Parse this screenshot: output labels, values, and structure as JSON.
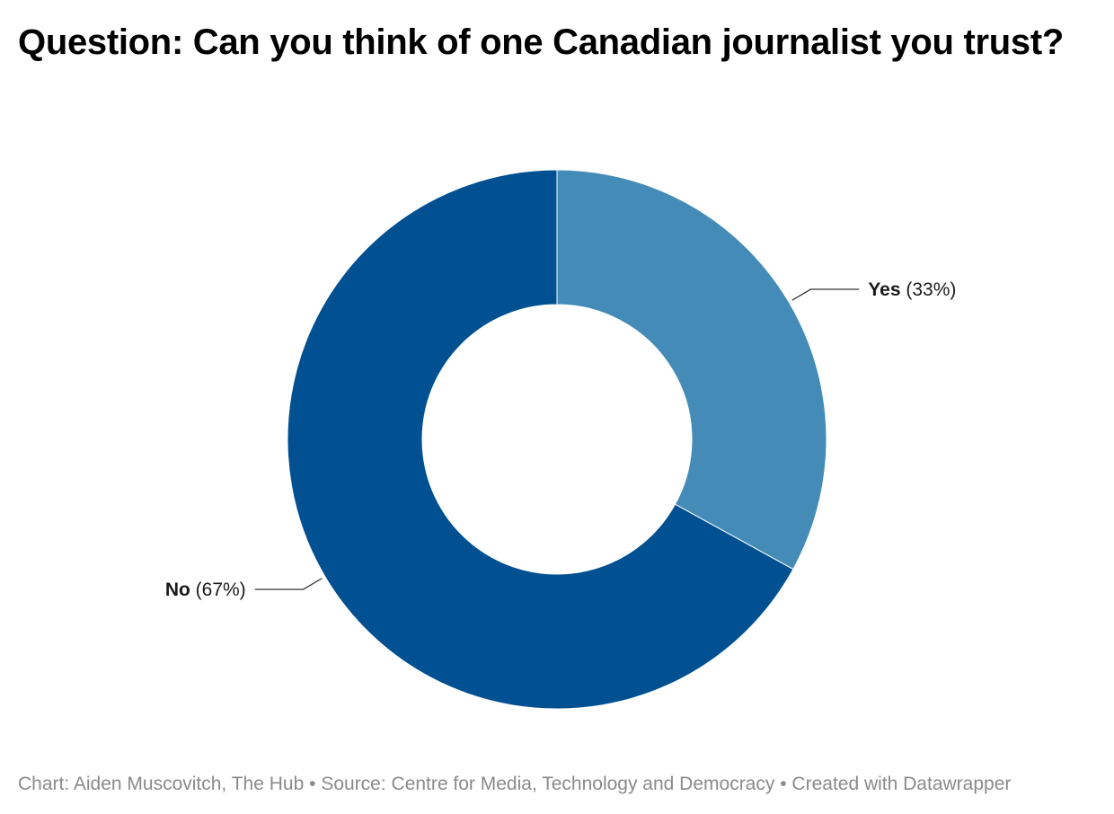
{
  "chart_data": {
    "type": "pie",
    "subtype": "donut",
    "title": "Question: Can you think of one Canadian journalist you trust?",
    "categories": [
      "Yes",
      "No"
    ],
    "values": [
      33,
      67
    ],
    "unit": "%",
    "colors": [
      "#448cb7",
      "#005092"
    ],
    "label_texts": [
      "(33%)",
      "(67%)"
    ]
  },
  "footer": {
    "chart_credit": "Chart: Aiden Muscovitch, The Hub",
    "separator": "•",
    "source": "Source: Centre for Media, Technology and Democracy",
    "created_with": "Created with Datawrapper"
  }
}
